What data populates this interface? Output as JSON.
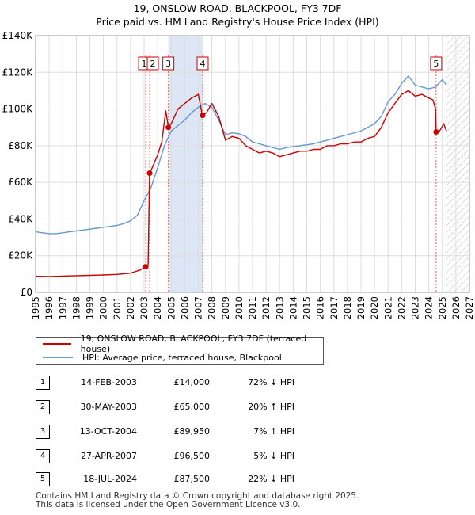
{
  "chart_data": {
    "type": "line",
    "title": "19, ONSLOW ROAD, BLACKPOOL, FY3 7DF",
    "subtitle": "Price paid vs. HM Land Registry's House Price Index (HPI)",
    "xlim": [
      1995,
      2027
    ],
    "ylim": [
      0,
      140000
    ],
    "yticks": [
      0,
      20000,
      40000,
      60000,
      80000,
      100000,
      120000,
      140000
    ],
    "ytick_labels": [
      "£0",
      "£20K",
      "£40K",
      "£60K",
      "£80K",
      "£100K",
      "£120K",
      "£140K"
    ],
    "xticks": [
      "1995",
      "1996",
      "1997",
      "1998",
      "1999",
      "2000",
      "2001",
      "2002",
      "2003",
      "2004",
      "2005",
      "2006",
      "2007",
      "2008",
      "2009",
      "2010",
      "2011",
      "2012",
      "2013",
      "2014",
      "2015",
      "2016",
      "2017",
      "2018",
      "2019",
      "2020",
      "2021",
      "2022",
      "2023",
      "2024",
      "2025",
      "2026",
      "2027"
    ],
    "grid": true,
    "shaded_ranges": [
      [
        2004.78,
        2007.32
      ]
    ],
    "forecast_from": 2025.25,
    "series": [
      {
        "name": "19, ONSLOW ROAD, BLACKPOOL, FY3 7DF (terraced house)",
        "color": "#cc0000",
        "points": [
          [
            1995.0,
            8800
          ],
          [
            1996.0,
            8700
          ],
          [
            1997.0,
            8900
          ],
          [
            1998.0,
            9100
          ],
          [
            1999.0,
            9300
          ],
          [
            2000.0,
            9500
          ],
          [
            2001.0,
            9800
          ],
          [
            2002.0,
            10500
          ],
          [
            2002.7,
            12200
          ],
          [
            2003.1,
            14000
          ],
          [
            2003.3,
            15000
          ],
          [
            2003.4,
            65000
          ],
          [
            2003.6,
            68000
          ],
          [
            2004.0,
            75000
          ],
          [
            2004.3,
            82000
          ],
          [
            2004.6,
            99000
          ],
          [
            2004.79,
            89950
          ],
          [
            2005.0,
            92000
          ],
          [
            2005.5,
            100000
          ],
          [
            2006.0,
            103000
          ],
          [
            2006.5,
            106000
          ],
          [
            2007.0,
            108000
          ],
          [
            2007.3,
            96500
          ],
          [
            2007.6,
            98000
          ],
          [
            2008.0,
            103000
          ],
          [
            2008.5,
            96000
          ],
          [
            2009.0,
            83000
          ],
          [
            2009.5,
            85000
          ],
          [
            2010.0,
            84000
          ],
          [
            2010.5,
            80000
          ],
          [
            2011.0,
            78000
          ],
          [
            2011.5,
            76000
          ],
          [
            2012.0,
            77000
          ],
          [
            2012.5,
            76000
          ],
          [
            2013.0,
            74000
          ],
          [
            2013.5,
            75000
          ],
          [
            2014.0,
            76000
          ],
          [
            2014.5,
            77000
          ],
          [
            2015.0,
            77000
          ],
          [
            2015.5,
            78000
          ],
          [
            2016.0,
            78000
          ],
          [
            2016.5,
            80000
          ],
          [
            2017.0,
            80000
          ],
          [
            2017.5,
            81000
          ],
          [
            2018.0,
            81000
          ],
          [
            2018.5,
            82000
          ],
          [
            2019.0,
            82000
          ],
          [
            2019.5,
            84000
          ],
          [
            2020.0,
            85000
          ],
          [
            2020.5,
            90000
          ],
          [
            2021.0,
            98000
          ],
          [
            2021.5,
            103000
          ],
          [
            2022.0,
            108000
          ],
          [
            2022.5,
            110000
          ],
          [
            2023.0,
            107000
          ],
          [
            2023.5,
            108000
          ],
          [
            2024.0,
            106000
          ],
          [
            2024.3,
            105000
          ],
          [
            2024.5,
            100000
          ],
          [
            2024.54,
            87500
          ],
          [
            2024.8,
            88000
          ],
          [
            2025.1,
            92000
          ],
          [
            2025.3,
            88000
          ]
        ]
      },
      {
        "name": "HPI: Average price, terraced house, Blackpool",
        "color": "#6699cc",
        "points": [
          [
            1995.0,
            33000
          ],
          [
            1995.5,
            32500
          ],
          [
            1996.0,
            32000
          ],
          [
            1996.5,
            32000
          ],
          [
            1997.0,
            32500
          ],
          [
            1997.5,
            33000
          ],
          [
            1998.0,
            33500
          ],
          [
            1998.5,
            34000
          ],
          [
            1999.0,
            34500
          ],
          [
            1999.5,
            35000
          ],
          [
            2000.0,
            35500
          ],
          [
            2000.5,
            36000
          ],
          [
            2001.0,
            36500
          ],
          [
            2001.5,
            37500
          ],
          [
            2002.0,
            39000
          ],
          [
            2002.5,
            42000
          ],
          [
            2003.0,
            50000
          ],
          [
            2003.5,
            57000
          ],
          [
            2004.0,
            68000
          ],
          [
            2004.5,
            80000
          ],
          [
            2005.0,
            88000
          ],
          [
            2005.5,
            91000
          ],
          [
            2006.0,
            94000
          ],
          [
            2006.5,
            98000
          ],
          [
            2007.0,
            101000
          ],
          [
            2007.5,
            103000
          ],
          [
            2008.0,
            101000
          ],
          [
            2008.5,
            94000
          ],
          [
            2009.0,
            86000
          ],
          [
            2009.5,
            87000
          ],
          [
            2010.0,
            86500
          ],
          [
            2010.5,
            85000
          ],
          [
            2011.0,
            82000
          ],
          [
            2011.5,
            81000
          ],
          [
            2012.0,
            80000
          ],
          [
            2012.5,
            79000
          ],
          [
            2013.0,
            78000
          ],
          [
            2013.5,
            79000
          ],
          [
            2014.0,
            79500
          ],
          [
            2014.5,
            80000
          ],
          [
            2015.0,
            80500
          ],
          [
            2015.5,
            81000
          ],
          [
            2016.0,
            82000
          ],
          [
            2016.5,
            83000
          ],
          [
            2017.0,
            84000
          ],
          [
            2017.5,
            85000
          ],
          [
            2018.0,
            86000
          ],
          [
            2018.5,
            87000
          ],
          [
            2019.0,
            88000
          ],
          [
            2019.5,
            90000
          ],
          [
            2020.0,
            92000
          ],
          [
            2020.5,
            96000
          ],
          [
            2021.0,
            104000
          ],
          [
            2021.5,
            108000
          ],
          [
            2022.0,
            114000
          ],
          [
            2022.5,
            118000
          ],
          [
            2023.0,
            113000
          ],
          [
            2023.5,
            112000
          ],
          [
            2024.0,
            111000
          ],
          [
            2024.5,
            112000
          ],
          [
            2025.0,
            116000
          ],
          [
            2025.3,
            113000
          ]
        ]
      }
    ],
    "markers": [
      {
        "label": "1",
        "x": 2003.12,
        "y": 14000
      },
      {
        "label": "2",
        "x": 2003.41,
        "y": 65000
      },
      {
        "label": "3",
        "x": 2004.79,
        "y": 89950
      },
      {
        "label": "4",
        "x": 2007.32,
        "y": 96500
      },
      {
        "label": "5",
        "x": 2024.54,
        "y": 87500
      }
    ]
  },
  "legend": {
    "property_label": "19, ONSLOW ROAD, BLACKPOOL, FY3 7DF (terraced house)",
    "hpi_label": "HPI: Average price, terraced house, Blackpool"
  },
  "transactions": [
    {
      "num": "1",
      "date": "14-FEB-2003",
      "price": "£14,000",
      "hpi": "72% ↓ HPI"
    },
    {
      "num": "2",
      "date": "30-MAY-2003",
      "price": "£65,000",
      "hpi": "20% ↑ HPI"
    },
    {
      "num": "3",
      "date": "13-OCT-2004",
      "price": "£89,950",
      "hpi": "7% ↑ HPI"
    },
    {
      "num": "4",
      "date": "27-APR-2007",
      "price": "£96,500",
      "hpi": "5% ↓ HPI"
    },
    {
      "num": "5",
      "date": "18-JUL-2024",
      "price": "£87,500",
      "hpi": "22% ↓ HPI"
    }
  ],
  "footer": {
    "line1": "Contains HM Land Registry data © Crown copyright and database right 2025.",
    "line2": "This data is licensed under the Open Government Licence v3.0."
  }
}
